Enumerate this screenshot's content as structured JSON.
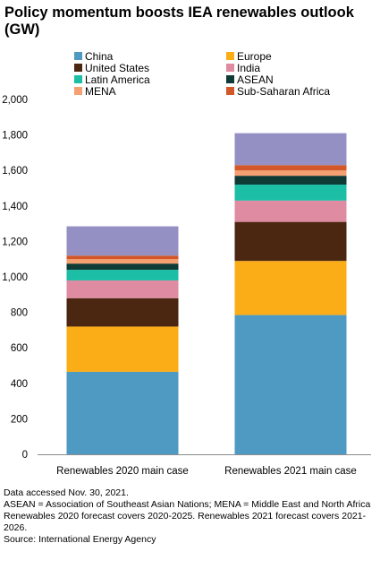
{
  "chart_data": {
    "type": "bar",
    "stacked": true,
    "title": "Policy momentum boosts IEA renewables outlook (GW)",
    "categories": [
      "Renewables 2020 main case",
      "Renewables 2021 main case"
    ],
    "ylim": [
      0,
      2000
    ],
    "yticks": [
      0,
      200,
      400,
      600,
      800,
      1000,
      1200,
      1400,
      1600,
      1800,
      2000
    ],
    "yticklabels": [
      "0",
      "200",
      "400",
      "600",
      "800",
      "1,000",
      "1,200",
      "1,400",
      "1,600",
      "1,800",
      "2,000"
    ],
    "grid": false,
    "legend_position": "top",
    "series": [
      {
        "name": "China",
        "color": "#4e9ac3",
        "values": [
          465,
          785
        ]
      },
      {
        "name": "Europe",
        "color": "#fbad17",
        "values": [
          255,
          305
        ]
      },
      {
        "name": "United States",
        "color": "#4b2712",
        "values": [
          160,
          220
        ]
      },
      {
        "name": "India",
        "color": "#df8ba1",
        "values": [
          100,
          120
        ]
      },
      {
        "name": "Latin America",
        "color": "#1dbea6",
        "values": [
          60,
          90
        ]
      },
      {
        "name": "ASEAN",
        "color": "#0e3b36",
        "values": [
          35,
          50
        ]
      },
      {
        "name": "MENA",
        "color": "#f4a070",
        "values": [
          25,
          30
        ]
      },
      {
        "name": "Sub-Saharan Africa",
        "color": "#d2582a",
        "values": [
          20,
          30
        ]
      },
      {
        "name": "",
        "color": "#9590c4",
        "values": [
          165,
          180
        ]
      }
    ]
  },
  "legend": [
    {
      "label": "China",
      "color": "#4e9ac3"
    },
    {
      "label": "Europe",
      "color": "#fbad17"
    },
    {
      "label": "United States",
      "color": "#4b2712"
    },
    {
      "label": "India",
      "color": "#df8ba1"
    },
    {
      "label": "Latin America",
      "color": "#1dbea6"
    },
    {
      "label": "ASEAN",
      "color": "#0e3b36"
    },
    {
      "label": "MENA",
      "color": "#f4a070"
    },
    {
      "label": "Sub-Saharan Africa",
      "color": "#d2582a"
    }
  ],
  "notes": [
    "Data accessed Nov. 30, 2021.",
    "ASEAN = Association of Southeast Asian Nations; MENA = Middle East and North Africa",
    "Renewables 2020 forecast covers 2020-2025. Renewables 2021 forecast covers 2021-2026.",
    "Source: International Energy Agency"
  ]
}
